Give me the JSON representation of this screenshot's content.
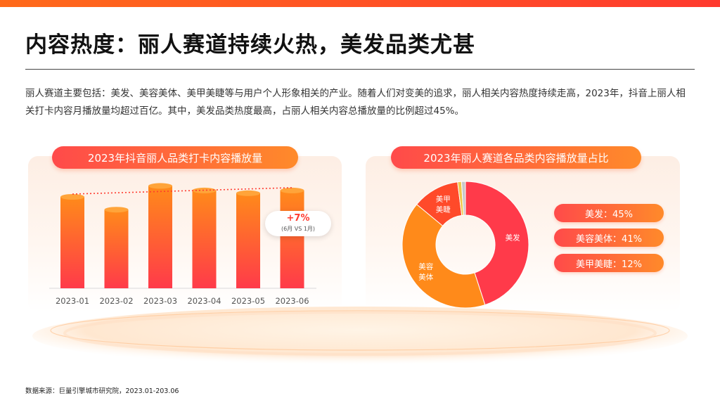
{
  "page": {
    "title": "内容热度：丽人赛道持续火热，美发品类尤甚",
    "summary": "丽人赛道主要包括：美发、美容美体、美甲美睫等与用户个人形象相关的产业。随着人们对变美的追求，丽人相关内容热度持续走高，2023年，抖音上丽人相关打卡内容月播放量均超过百亿。其中，美发品类热度最高，占丽人相关内容总播放量的比例超过45%。",
    "source": "数据来源：巨量引擎城市研究院，2023.01-203.06"
  },
  "colors": {
    "accent_red": "#ff3a4a",
    "accent_orange": "#ff8a1a",
    "nail_red": "#ff4a2a",
    "other_yellow": "#f2c84b",
    "other_gray": "#c8c8c8"
  },
  "chart_data": [
    {
      "type": "bar",
      "title": "2023年抖音丽人品类打卡内容播放量",
      "categories": [
        "2023-01",
        "2023-02",
        "2023-03",
        "2023-04",
        "2023-05",
        "2023-06"
      ],
      "values": [
        100,
        86,
        112,
        107,
        104,
        107
      ],
      "ylim": [
        0,
        120
      ],
      "trendline": true,
      "annotation": {
        "value": "+7%",
        "note": "(6月 VS 1月)"
      },
      "xlabel": "",
      "ylabel": ""
    },
    {
      "type": "pie",
      "donut": true,
      "title": "2023年丽人赛道各品类内容播放量占比",
      "slices": [
        {
          "label": "美发",
          "value": 45,
          "color": "#ff3a4a"
        },
        {
          "label": "美容美体",
          "value": 41,
          "color": "#ff8a1a"
        },
        {
          "label": "美甲美睫",
          "value": 12,
          "color": "#ff4a2a"
        },
        {
          "label": "",
          "value": 1,
          "color": "#f2c84b"
        },
        {
          "label": "",
          "value": 1,
          "color": "#c8c8c8"
        }
      ],
      "slice_labels": [
        "美发",
        "美容\n美体",
        "美甲\n美睫"
      ],
      "legend": [
        "美发：45%",
        "美容美体：41%",
        "美甲美睫：12%"
      ]
    }
  ]
}
